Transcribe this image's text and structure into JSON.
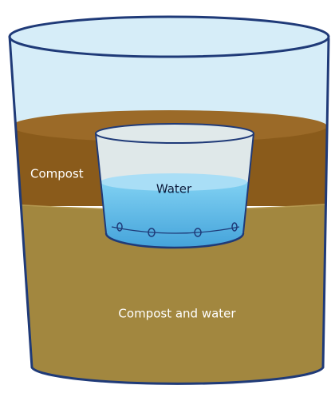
{
  "labels": {
    "compost": "Compost",
    "water": "Water",
    "mixture": "Compost and water"
  }
}
